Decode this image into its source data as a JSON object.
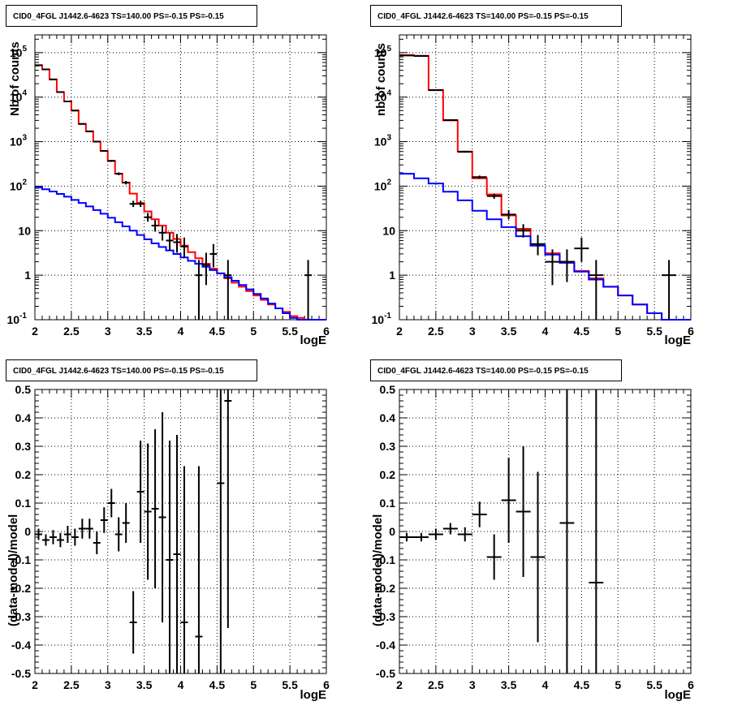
{
  "colors": {
    "data": "#000000",
    "total_model": "#ff0000",
    "background_model": "#0000ff",
    "grid": "#000000"
  },
  "chart_data": [
    {
      "type": "line",
      "title": "CID0_4FGL J1442.6-4623 TS=140.00 PS=-0.15 PS=-0.15",
      "xlabel": "logE",
      "ylabel": "Nb of counts",
      "xlim": [
        2,
        6
      ],
      "ylim": [
        0.1,
        250000
      ],
      "yscale": "log",
      "xticks": [
        "2",
        "2.5",
        "3",
        "3.5",
        "4",
        "4.5",
        "5",
        "5.5",
        "6"
      ],
      "yticks": [
        "10^-1",
        "1",
        "10",
        "10^2",
        "10^3",
        "10^4",
        "10^5"
      ],
      "grid": true,
      "bin_width": 0.1,
      "series": [
        {
          "color": "red",
          "style": "step",
          "x": [
            2.0,
            2.1,
            2.2,
            2.3,
            2.4,
            2.5,
            2.6,
            2.7,
            2.8,
            2.9,
            3.0,
            3.1,
            3.2,
            3.3,
            3.4,
            3.5,
            3.6,
            3.7,
            3.8,
            3.9,
            4.0,
            4.1,
            4.2,
            4.3,
            4.4,
            4.5,
            4.6,
            4.7,
            4.8,
            4.9,
            5.0,
            5.1,
            5.2,
            5.3,
            5.4,
            5.5,
            5.6,
            5.7,
            5.8,
            5.9
          ],
          "y": [
            52000,
            42000,
            25000,
            13000,
            8000,
            5000,
            2500,
            1700,
            1000,
            620,
            370,
            190,
            120,
            68,
            42,
            27,
            18,
            13,
            9,
            6.5,
            4.6,
            3.3,
            2.4,
            1.8,
            1.4,
            1.1,
            0.85,
            0.68,
            0.55,
            0.44,
            0.35,
            0.28,
            0.22,
            0.18,
            0.15,
            0.12,
            0.11,
            0.1,
            0.1,
            0.1
          ]
        },
        {
          "color": "blue",
          "style": "step",
          "x": [
            2.0,
            2.1,
            2.2,
            2.3,
            2.4,
            2.5,
            2.6,
            2.7,
            2.8,
            2.9,
            3.0,
            3.1,
            3.2,
            3.3,
            3.4,
            3.5,
            3.6,
            3.7,
            3.8,
            3.9,
            4.0,
            4.1,
            4.2,
            4.3,
            4.4,
            4.5,
            4.6,
            4.7,
            4.8,
            4.9,
            5.0,
            5.1,
            5.2,
            5.3,
            5.4,
            5.5,
            5.6,
            5.7,
            5.8,
            5.9
          ],
          "y": [
            93,
            85,
            76,
            67,
            58,
            49,
            42,
            35,
            29,
            24,
            19.5,
            15.5,
            12.5,
            10,
            8,
            6.4,
            5.2,
            4.3,
            3.6,
            3,
            2.5,
            2.1,
            1.8,
            1.55,
            1.3,
            1.1,
            0.9,
            0.75,
            0.6,
            0.48,
            0.38,
            0.3,
            0.23,
            0.18,
            0.14,
            0.11,
            0.1,
            0.1,
            0.1,
            0.1
          ]
        },
        {
          "color": "black",
          "style": "errorbar",
          "name": "",
          "x": [
            2.05,
            2.15,
            2.25,
            2.35,
            2.45,
            2.55,
            2.65,
            2.75,
            2.85,
            2.95,
            3.05,
            3.15,
            3.25,
            3.35,
            3.45,
            3.55,
            3.65,
            3.75,
            3.85,
            3.95,
            4.05,
            4.25,
            4.35,
            4.45,
            4.65,
            5.75
          ],
          "y": [
            52000,
            42000,
            25000,
            13000,
            8000,
            5000,
            2500,
            1700,
            1000,
            620,
            370,
            190,
            120,
            40,
            40,
            20,
            13,
            9,
            6,
            5.5,
            4.4,
            1,
            1.7,
            3,
            1,
            1
          ],
          "yerr": [
            [
              230,
              230
            ],
            [
              200,
              200
            ],
            [
              160,
              160
            ],
            [
              115,
              115
            ],
            [
              90,
              90
            ],
            [
              70,
              70
            ],
            [
              50,
              50
            ],
            [
              41,
              41
            ],
            [
              32,
              32
            ],
            [
              25,
              25
            ],
            [
              19,
              19
            ],
            [
              14,
              14
            ],
            [
              11,
              11
            ],
            [
              6,
              7
            ],
            [
              6,
              7
            ],
            [
              4,
              5
            ],
            [
              3.5,
              4.2
            ],
            [
              3,
              3.5
            ],
            [
              2.4,
              3
            ],
            [
              2.3,
              2.9
            ],
            [
              2,
              2.6
            ],
            [
              1,
              1.2
            ],
            [
              1.1,
              1.5
            ],
            [
              1.5,
              2
            ],
            [
              1,
              1.2
            ],
            [
              1,
              1.2
            ]
          ]
        }
      ]
    },
    {
      "type": "line",
      "title": "CID0_4FGL J1442.6-4623 TS=140.00 PS=-0.15 PS=-0.15",
      "xlabel": "logE",
      "ylabel": "nb of counts",
      "xlim": [
        2,
        6
      ],
      "ylim": [
        0.1,
        250000
      ],
      "yscale": "log",
      "xticks": [
        "2",
        "2.5",
        "3",
        "3.5",
        "4",
        "4.5",
        "5",
        "5.5",
        "6"
      ],
      "yticks": [
        "10^-1",
        "1",
        "10",
        "10^2",
        "10^3",
        "10^4",
        "10^5"
      ],
      "grid": true,
      "bin_width": 0.2,
      "series": [
        {
          "color": "red",
          "style": "step",
          "x": [
            2.0,
            2.2,
            2.4,
            2.6,
            2.8,
            3.0,
            3.2,
            3.4,
            3.6,
            3.8,
            4.0,
            4.2,
            4.4,
            4.6,
            4.8,
            5.0,
            5.2,
            5.4,
            5.6,
            5.8
          ],
          "y": [
            88000,
            85000,
            14500,
            3000,
            600,
            150,
            65,
            22,
            11,
            4.7,
            3.1,
            2,
            1.25,
            0.85,
            0.55,
            0.35,
            0.22,
            0.14,
            0.1,
            0.1
          ]
        },
        {
          "color": "blue",
          "style": "step",
          "x": [
            2.0,
            2.2,
            2.4,
            2.6,
            2.8,
            3.0,
            3.2,
            3.4,
            3.6,
            3.8,
            4.0,
            4.2,
            4.4,
            4.6,
            4.8,
            5.0,
            5.2,
            5.4,
            5.6,
            5.8
          ],
          "y": [
            190,
            150,
            115,
            75,
            48,
            28,
            18,
            12,
            7.5,
            4.6,
            2.9,
            1.9,
            1.2,
            0.8,
            0.55,
            0.35,
            0.22,
            0.14,
            0.1,
            0.1
          ]
        },
        {
          "color": "black",
          "style": "errorbar",
          "name": "",
          "x": [
            2.1,
            2.3,
            2.5,
            2.7,
            2.9,
            3.1,
            3.3,
            3.5,
            3.7,
            3.9,
            4.1,
            4.3,
            4.5,
            4.7,
            5.7
          ],
          "y": [
            86000,
            84000,
            14300,
            3050,
            590,
            160,
            60,
            23,
            10,
            5,
            2,
            2,
            4,
            1,
            1
          ],
          "yerr": [
            [
              290,
              290
            ],
            [
              290,
              290
            ],
            [
              120,
              120
            ],
            [
              55,
              55
            ],
            [
              24,
              24
            ],
            [
              13,
              13
            ],
            [
              8,
              8
            ],
            [
              5,
              6
            ],
            [
              3,
              4
            ],
            [
              2.2,
              3
            ],
            [
              1.4,
              1.8
            ],
            [
              1.3,
              1.8
            ],
            [
              2,
              3
            ],
            [
              1,
              1.2
            ],
            [
              1,
              1.2
            ]
          ]
        }
      ]
    },
    {
      "type": "scatter",
      "title": "CID0_4FGL J1442.6-4623 TS=140.00 PS=-0.15 PS=-0.15",
      "xlabel": "logE",
      "ylabel": "(data-model)/model",
      "xlim": [
        2,
        6
      ],
      "ylim": [
        -0.5,
        0.5
      ],
      "xticks": [
        "2",
        "2.5",
        "3",
        "3.5",
        "4",
        "4.5",
        "5",
        "5.5",
        "6"
      ],
      "yticks": [
        "-0.5",
        "-0.4",
        "-0.3",
        "-0.2",
        "-0.1",
        "0",
        "0.1",
        "0.2",
        "0.3",
        "0.4",
        "0.5"
      ],
      "grid": true,
      "bin_width": 0.1,
      "series": [
        {
          "color": "black",
          "style": "errorbar",
          "x": [
            2.05,
            2.15,
            2.25,
            2.35,
            2.45,
            2.55,
            2.65,
            2.75,
            2.85,
            2.95,
            3.05,
            3.15,
            3.25,
            3.35,
            3.45,
            3.55,
            3.65,
            3.75,
            3.85,
            3.95,
            4.05,
            4.25,
            4.55,
            4.65
          ],
          "y": [
            -0.01,
            -0.03,
            -0.02,
            -0.03,
            -0.01,
            -0.02,
            0.01,
            0.01,
            -0.04,
            0.04,
            0.1,
            -0.01,
            0.03,
            -0.32,
            0.14,
            0.07,
            0.08,
            0.05,
            -0.1,
            -0.08,
            -0.32,
            -0.37,
            0.17,
            0.46
          ],
          "yerr": [
            0.02,
            0.02,
            0.025,
            0.025,
            0.03,
            0.03,
            0.035,
            0.035,
            0.04,
            0.045,
            0.05,
            0.06,
            0.07,
            0.11,
            0.18,
            0.24,
            0.28,
            0.37,
            0.42,
            0.42,
            0.55,
            0.6,
            0.8,
            0.8
          ]
        }
      ]
    },
    {
      "type": "scatter",
      "title": "CID0_4FGL J1442.6-4623 TS=140.00 PS=-0.15 PS=-0.15",
      "xlabel": "logE",
      "ylabel": "(data-model)/model",
      "xlim": [
        2,
        6
      ],
      "ylim": [
        -0.5,
        0.5
      ],
      "xticks": [
        "2",
        "2.5",
        "3",
        "3.5",
        "4",
        "4.5",
        "5",
        "5.5",
        "6"
      ],
      "yticks": [
        "-0.5",
        "-0.4",
        "-0.3",
        "-0.2",
        "-0.1",
        "0",
        "0.1",
        "0.2",
        "0.3",
        "0.4",
        "0.5"
      ],
      "grid": true,
      "bin_width": 0.2,
      "series": [
        {
          "color": "black",
          "style": "errorbar",
          "x": [
            2.1,
            2.3,
            2.5,
            2.7,
            2.9,
            3.1,
            3.3,
            3.5,
            3.7,
            3.9,
            4.3,
            4.7
          ],
          "y": [
            -0.02,
            -0.02,
            -0.01,
            0.01,
            -0.01,
            0.06,
            -0.09,
            0.11,
            0.07,
            -0.09,
            0.03,
            -0.18
          ],
          "yerr": [
            0.015,
            0.015,
            0.02,
            0.02,
            0.025,
            0.045,
            0.08,
            0.15,
            0.23,
            0.3,
            0.9,
            0.9
          ]
        }
      ]
    }
  ]
}
